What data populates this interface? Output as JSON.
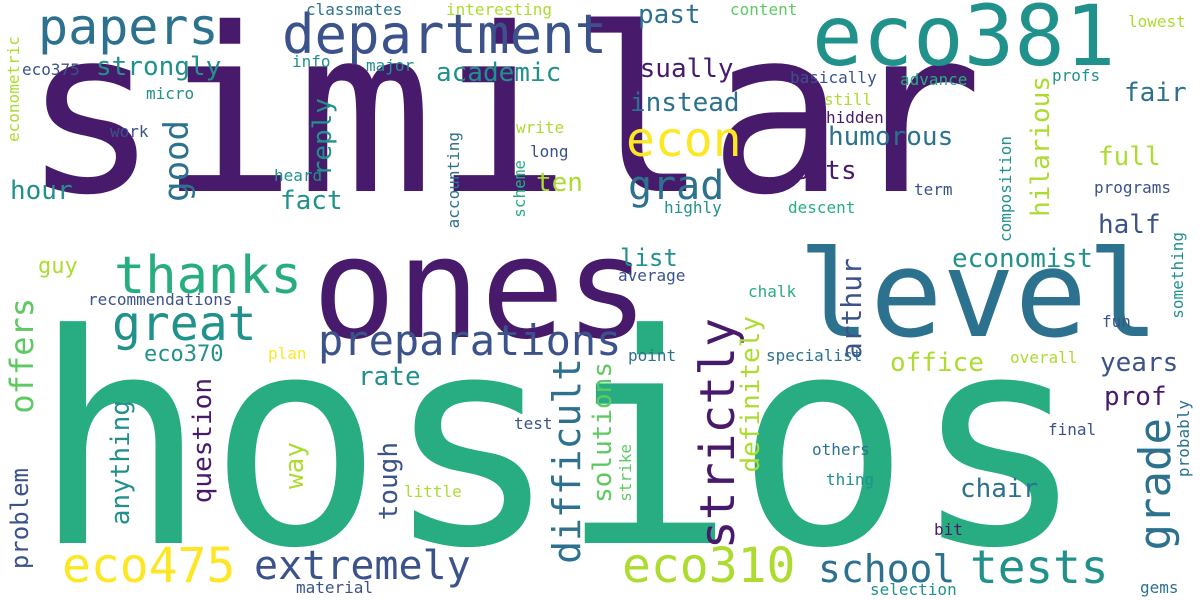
{
  "palette": {
    "dark_purple": "#481a6c",
    "indigo": "#3b528b",
    "blue": "#2c728e",
    "teal": "#21918c",
    "green": "#27ad81",
    "light_green": "#5ec962",
    "yellow_green": "#addc30",
    "yellow": "#fde725",
    "background": "#ffffff"
  },
  "words": {
    "similar": "similar",
    "hosios": "hosios",
    "ones": "ones",
    "level": "level",
    "eco381": "eco381",
    "department": "department",
    "papers": "papers",
    "econ": "econ",
    "thanks": "thanks",
    "great": "great",
    "preparations": "preparations",
    "strictly": "strictly",
    "grade": "grade",
    "eco475": "eco475",
    "eco310": "eco310",
    "tests": "tests",
    "school": "school",
    "extremely": "extremely",
    "difficult": "difficult",
    "grad": "grad",
    "good": "good",
    "offers": "offers",
    "arthur": "arthur",
    "hilarious": "hilarious",
    "humorous": "humorous",
    "instead": "instead",
    "usually": "usually",
    "academic": "academic",
    "strongly": "strongly",
    "past": "past",
    "fair": "fair",
    "full": "full",
    "half": "half",
    "economist": "economist",
    "office": "office",
    "years": "years",
    "prof": "prof",
    "chair": "chair",
    "sets": "sets",
    "reply": "reply",
    "fact": "fact",
    "hour": "hour",
    "ten": "ten",
    "eco370": "eco370",
    "rate": "rate",
    "question": "question",
    "anything": "anything",
    "tough": "tough",
    "way": "way",
    "solutions": "solutions",
    "definitely": "definitely",
    "problem": "problem",
    "list": "list",
    "guy": "guy",
    "classmates": "classmates",
    "interesting": "interesting",
    "content": "content",
    "lowest": "lowest",
    "econometric": "econometric",
    "eco375": "eco375",
    "info": "info",
    "major": "major",
    "micro": "micro",
    "work": "work",
    "basically": "basically",
    "advance": "advance",
    "profs": "profs",
    "still": "still",
    "hidden": "hidden",
    "write": "write",
    "long": "long",
    "accounting": "accounting",
    "scheme": "scheme",
    "heard": "heard",
    "highly": "highly",
    "term": "term",
    "composition": "composition",
    "programs": "programs",
    "descent": "descent",
    "recommendations": "recommendations",
    "average": "average",
    "chalk": "chalk",
    "something": "something",
    "fun": "fun",
    "plan": "plan",
    "point": "point",
    "specialist": "specialist",
    "overall": "overall",
    "probably": "probably",
    "test": "test",
    "final": "final",
    "others": "others",
    "thing": "thing",
    "strike": "strike",
    "little": "little",
    "bit": "bit",
    "material": "material",
    "selection": "selection",
    "gems": "gems"
  }
}
